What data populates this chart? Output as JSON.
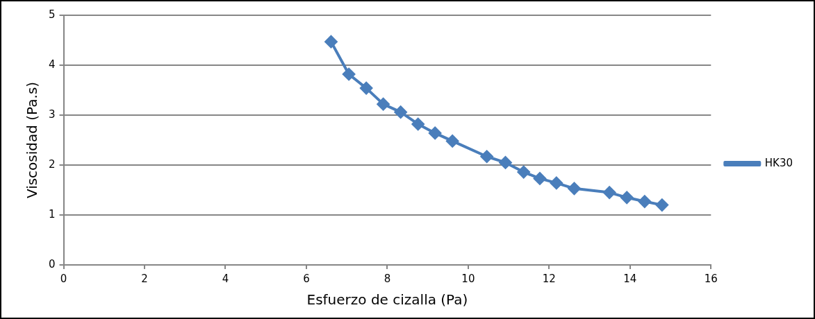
{
  "chart_data": {
    "type": "line",
    "xlabel": "Esfuerzo de cizalla (Pa)",
    "ylabel": "Viscosidad (Pa.s)",
    "xlim": [
      0,
      16
    ],
    "xticks": [
      0,
      2,
      4,
      6,
      8,
      10,
      12,
      14,
      16
    ],
    "ylim": [
      0,
      5
    ],
    "yticks": [
      0,
      1,
      2,
      3,
      4,
      5
    ],
    "grid": "y",
    "legend": "right",
    "marker": "diamond",
    "line_style": "solid",
    "series": [
      {
        "name": "HK30",
        "color": "#4a7ebb",
        "x": [
          6.61,
          7.05,
          7.48,
          7.9,
          8.33,
          8.76,
          9.18,
          9.61,
          10.46,
          10.92,
          11.37,
          11.77,
          12.18,
          12.62,
          13.49,
          13.92,
          14.36,
          14.79
        ],
        "values": [
          4.47,
          3.82,
          3.54,
          3.22,
          3.06,
          2.82,
          2.64,
          2.48,
          2.17,
          2.05,
          1.86,
          1.73,
          1.64,
          1.53,
          1.45,
          1.35,
          1.27,
          1.2
        ]
      }
    ]
  }
}
